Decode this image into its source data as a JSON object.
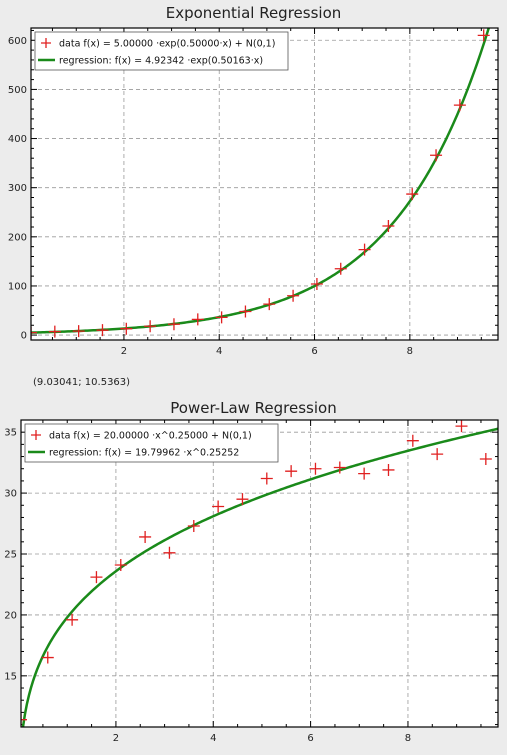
{
  "status_readout": "(9.03041; 10.5363)",
  "colors": {
    "data": "#e02020",
    "fit": "#1a8a1a",
    "grid": "#9a9a9a",
    "plot_bg": "#ffffff",
    "page_bg": "#ececec"
  },
  "chart_data": [
    {
      "type": "scatter",
      "title": "Exponential Regression",
      "xlabel": "",
      "ylabel": "",
      "xlim": [
        0.05,
        9.85
      ],
      "ylim": [
        -10,
        625
      ],
      "xticks": [
        2,
        4,
        6,
        8
      ],
      "yticks": [
        0,
        100,
        200,
        300,
        400,
        500,
        600
      ],
      "grid": true,
      "legend_position": "top-left",
      "legend": [
        "data f(x) = 5.00000 ·exp(0.50000·x) + N(0,1)",
        "regression: f(x) = 4.92342 ·exp(0.50163·x)"
      ],
      "series": [
        {
          "kind": "points",
          "x": [
            0.05,
            0.55,
            1.05,
            1.55,
            2.05,
            2.55,
            3.05,
            3.55,
            4.05,
            4.55,
            5.05,
            5.55,
            6.05,
            6.55,
            7.05,
            7.55,
            8.05,
            8.55,
            9.05,
            9.55
          ],
          "y": [
            5,
            7,
            8,
            10,
            13,
            18,
            22,
            32,
            36,
            48,
            63,
            80,
            104,
            135,
            174,
            222,
            287,
            366,
            468,
            610
          ]
        },
        {
          "kind": "curve",
          "model": "exponential",
          "a": 4.92342,
          "b": 0.50163,
          "domain": [
            0.05,
            9.85
          ]
        }
      ]
    },
    {
      "type": "scatter",
      "title": "Power-Law Regression",
      "xlabel": "",
      "ylabel": "",
      "xlim": [
        0.05,
        9.85
      ],
      "ylim": [
        10.8,
        36.0
      ],
      "xticks": [
        2,
        4,
        6,
        8
      ],
      "yticks": [
        15,
        20,
        25,
        30,
        35
      ],
      "grid": true,
      "legend_position": "top-left",
      "legend": [
        "data f(x) = 20.00000 ·x^0.25000 + N(0,1)",
        "regression: f(x) = 19.79962 ·x^0.25252"
      ],
      "series": [
        {
          "kind": "points",
          "x": [
            0.05,
            0.6,
            1.1,
            1.6,
            2.1,
            2.6,
            3.1,
            3.6,
            4.1,
            4.6,
            5.1,
            5.6,
            6.1,
            6.6,
            7.1,
            7.6,
            8.1,
            8.6,
            9.1,
            9.6
          ],
          "y": [
            11.4,
            16.5,
            19.6,
            23.1,
            24.1,
            26.4,
            25.1,
            27.3,
            28.9,
            29.5,
            31.2,
            31.8,
            32.0,
            32.1,
            31.6,
            31.9,
            34.3,
            33.2,
            35.5,
            32.8
          ]
        },
        {
          "kind": "curve",
          "model": "power",
          "a": 19.79962,
          "b": 0.25252,
          "domain": [
            0.05,
            9.85
          ]
        }
      ]
    }
  ]
}
